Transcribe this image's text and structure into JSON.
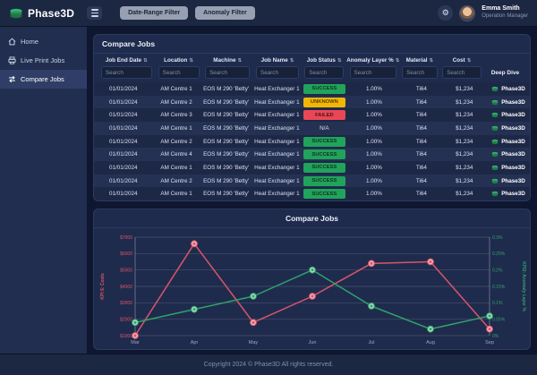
{
  "header": {
    "brand": "Phase3D",
    "filter_buttons": [
      {
        "label": "Date-Range Filter"
      },
      {
        "label": "Anomaly Filter"
      }
    ],
    "user": {
      "name": "Emma Smith",
      "role": "Operation Manager"
    }
  },
  "sidebar": {
    "items": [
      {
        "label": "Home",
        "icon": "home-icon",
        "active": false
      },
      {
        "label": "Live Print Jobs",
        "icon": "printer-icon",
        "active": false
      },
      {
        "label": "Compare Jobs",
        "icon": "compare-icon",
        "active": true
      }
    ]
  },
  "table": {
    "title": "Compare Jobs",
    "columns": [
      "Job End Date",
      "Location",
      "Machine",
      "Job Name",
      "Job Status",
      "Anomaly Layer %",
      "Material",
      "Cost"
    ],
    "deep_dive_label": "Deep Dive",
    "search_placeholder": "Search",
    "link_label": "Phase3D",
    "rows": [
      {
        "date": "01/01/2024",
        "location": "AM Centre 1",
        "machine": "EOS M 290 'Betty'",
        "job": "Heat Exchanger 1",
        "status": "SUCCESS",
        "anomaly": "1.00%",
        "material": "Ti64",
        "cost": "$1,234"
      },
      {
        "date": "01/01/2024",
        "location": "AM Centre 2",
        "machine": "EOS M 290 'Betty'",
        "job": "Heat Exchanger 1",
        "status": "UNKNOWN",
        "anomaly": "1.00%",
        "material": "Ti64",
        "cost": "$1,234"
      },
      {
        "date": "01/01/2024",
        "location": "AM Centre 3",
        "machine": "EOS M 290 'Betty'",
        "job": "Heat Exchanger 1",
        "status": "FAILED",
        "anomaly": "1.00%",
        "material": "Ti64",
        "cost": "$1,234"
      },
      {
        "date": "01/01/2024",
        "location": "AM Centre 1",
        "machine": "EOS M 290 'Betty'",
        "job": "Heat Exchanger 1",
        "status": "N/A",
        "anomaly": "1.00%",
        "material": "Ti64",
        "cost": "$1,234"
      },
      {
        "date": "01/01/2024",
        "location": "AM Centre 2",
        "machine": "EOS M 290 'Betty'",
        "job": "Heat Exchanger 1",
        "status": "SUCCESS",
        "anomaly": "1.00%",
        "material": "Ti64",
        "cost": "$1,234"
      },
      {
        "date": "01/01/2024",
        "location": "AM Centre 4",
        "machine": "EOS M 290 'Betty'",
        "job": "Heat Exchanger 1",
        "status": "SUCCESS",
        "anomaly": "1.00%",
        "material": "Ti64",
        "cost": "$1,234"
      },
      {
        "date": "01/01/2024",
        "location": "AM Centre 1",
        "machine": "EOS M 290 'Betty'",
        "job": "Heat Exchanger 1",
        "status": "SUCCESS",
        "anomaly": "1.00%",
        "material": "Ti64",
        "cost": "$1,234"
      },
      {
        "date": "01/01/2024",
        "location": "AM Centre 2",
        "machine": "EOS M 290 'Betty'",
        "job": "Heat Exchanger 1",
        "status": "SUCCESS",
        "anomaly": "1.00%",
        "material": "Ti64",
        "cost": "$1,234"
      },
      {
        "date": "01/01/2024",
        "location": "AM Centre 1",
        "machine": "EOS M 290 'Betty'",
        "job": "Heat Exchanger 1",
        "status": "SUCCESS",
        "anomaly": "1.00%",
        "material": "Ti64",
        "cost": "$1,234"
      }
    ],
    "status_colors": {
      "SUCCESS": "#21a35c",
      "UNKNOWN": "#f2b705",
      "FAILED": "#e84855"
    }
  },
  "chart": {
    "title": "Compare Jobs"
  },
  "chart_data": {
    "type": "line",
    "title": "Compare Jobs",
    "x": [
      "Mar",
      "Apr",
      "May",
      "Jun",
      "Jul",
      "Aug",
      "Sep"
    ],
    "series": [
      {
        "name": "KPI $: Costs",
        "axis": "left",
        "color": "#d9556b",
        "values": [
          1000,
          6600,
          1800,
          3400,
          5400,
          5500,
          1400
        ]
      },
      {
        "name": "KPI2: Anomaly Layer %",
        "axis": "right",
        "color": "#2fa26a",
        "values": [
          0.04,
          0.08,
          0.12,
          0.2,
          0.09,
          0.02,
          0.06
        ]
      }
    ],
    "left_axis": {
      "label": "KPI $: Costs",
      "min": 1000,
      "max": 7000,
      "step": 1000,
      "tick_labels": [
        "$1000",
        "$2000",
        "$3000",
        "$4000",
        "$5000",
        "$6000",
        "$7000"
      ],
      "color": "#d9556b"
    },
    "right_axis": {
      "label": "KPI2: Anomaly Layer %",
      "min": 0,
      "max": 0.3,
      "step": 0.05,
      "tick_labels": [
        "0%",
        "0.05%",
        "0.1%",
        "0.15%",
        "0.2%",
        "0.25%",
        "0.3%"
      ],
      "color": "#2fa26a"
    },
    "grid": true,
    "legend": "none"
  },
  "footer": {
    "text": "Copyright 2024 © Phase3D All rights reserved."
  },
  "colors": {
    "brand_green": "#2fa26a",
    "panel_bg": "#1f2b4d",
    "page_bg": "#0f1730",
    "header_bg": "#1c2742",
    "sidebar_bg": "#222e4f",
    "cost_series": "#d9556b",
    "anomaly_series": "#2fa26a"
  }
}
